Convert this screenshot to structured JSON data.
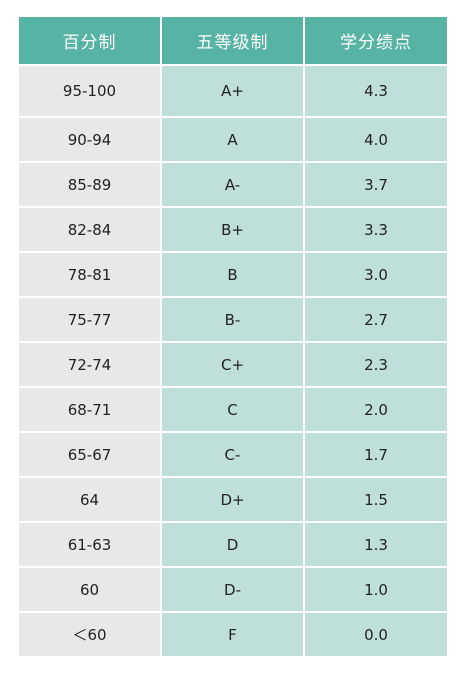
{
  "table": {
    "headers": [
      "百分制",
      "五等级制",
      "学分绩点"
    ],
    "rows": [
      {
        "score": "95-100",
        "letter": "A+",
        "gpa": "4.3"
      },
      {
        "score": "90-94",
        "letter": "A",
        "gpa": "4.0"
      },
      {
        "score": "85-89",
        "letter": "A-",
        "gpa": "3.7"
      },
      {
        "score": "82-84",
        "letter": "B+",
        "gpa": "3.3"
      },
      {
        "score": "78-81",
        "letter": "B",
        "gpa": "3.0"
      },
      {
        "score": "75-77",
        "letter": "B-",
        "gpa": "2.7"
      },
      {
        "score": "72-74",
        "letter": "C+",
        "gpa": "2.3"
      },
      {
        "score": "68-71",
        "letter": "C",
        "gpa": "2.0"
      },
      {
        "score": "65-67",
        "letter": "C-",
        "gpa": "1.7"
      },
      {
        "score": "64",
        "letter": "D+",
        "gpa": "1.5"
      },
      {
        "score": "61-63",
        "letter": "D",
        "gpa": "1.3"
      },
      {
        "score": "60",
        "letter": "D-",
        "gpa": "1.0"
      },
      {
        "score": "＜60",
        "letter": "F",
        "gpa": "0.0"
      }
    ]
  },
  "colors": {
    "header_bg": "#57b3a3",
    "score_col_bg": "#e8e8e8",
    "grade_col_bg": "#bfe0da"
  }
}
